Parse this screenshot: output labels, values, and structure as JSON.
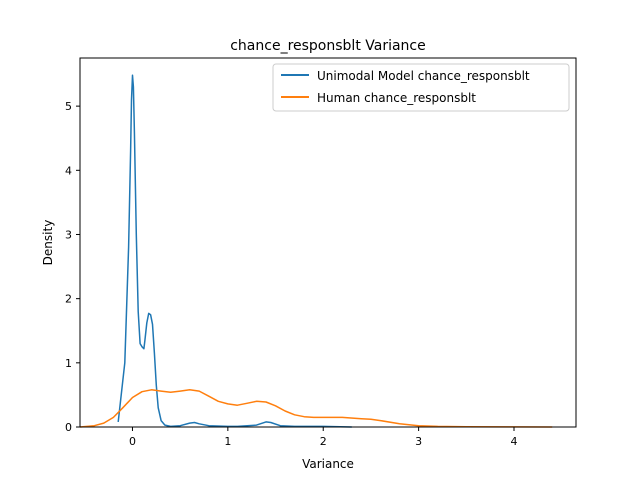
{
  "chart_data": {
    "type": "line",
    "title": "chance_responsblt Variance",
    "xlabel": "Variance",
    "ylabel": "Density",
    "xlim": [
      -0.55,
      4.65
    ],
    "ylim": [
      0,
      5.75
    ],
    "xticks": [
      0,
      1,
      2,
      3,
      4
    ],
    "yticks": [
      0,
      1,
      2,
      3,
      4,
      5
    ],
    "grid": false,
    "legend_position": "upper right",
    "series": [
      {
        "name": "Unimodal Model chance_responsblt",
        "color": "#1f77b4",
        "x": [
          -0.15,
          -0.08,
          -0.04,
          -0.02,
          -0.01,
          0.0,
          0.01,
          0.02,
          0.04,
          0.06,
          0.08,
          0.1,
          0.12,
          0.13,
          0.15,
          0.17,
          0.19,
          0.21,
          0.23,
          0.25,
          0.27,
          0.3,
          0.34,
          0.4,
          0.5,
          0.6,
          0.65,
          0.7,
          0.8,
          1.0,
          1.1,
          1.3,
          1.4,
          1.45,
          1.55,
          1.7,
          2.0,
          2.3
        ],
        "y": [
          0.08,
          1.0,
          2.8,
          4.3,
          5.1,
          5.48,
          5.3,
          4.6,
          3.0,
          1.8,
          1.3,
          1.25,
          1.22,
          1.35,
          1.62,
          1.77,
          1.75,
          1.6,
          1.15,
          0.65,
          0.3,
          0.1,
          0.03,
          0.01,
          0.02,
          0.06,
          0.07,
          0.05,
          0.02,
          0.01,
          0.01,
          0.03,
          0.08,
          0.07,
          0.02,
          0.01,
          0.01,
          0.0
        ]
      },
      {
        "name": "Human chance_responsblt",
        "color": "#ff7f0e",
        "x": [
          -0.55,
          -0.4,
          -0.3,
          -0.2,
          -0.1,
          0.0,
          0.1,
          0.2,
          0.3,
          0.4,
          0.5,
          0.6,
          0.7,
          0.8,
          0.9,
          1.0,
          1.1,
          1.2,
          1.3,
          1.4,
          1.5,
          1.6,
          1.7,
          1.8,
          1.9,
          2.0,
          2.2,
          2.4,
          2.5,
          2.6,
          2.8,
          3.0,
          3.2,
          3.5,
          4.0,
          4.4
        ],
        "y": [
          0.0,
          0.02,
          0.06,
          0.15,
          0.3,
          0.46,
          0.55,
          0.58,
          0.56,
          0.54,
          0.56,
          0.58,
          0.56,
          0.48,
          0.4,
          0.36,
          0.34,
          0.37,
          0.4,
          0.39,
          0.33,
          0.25,
          0.19,
          0.16,
          0.15,
          0.15,
          0.15,
          0.13,
          0.12,
          0.1,
          0.05,
          0.02,
          0.01,
          0.005,
          0.002,
          0.0
        ]
      }
    ]
  }
}
